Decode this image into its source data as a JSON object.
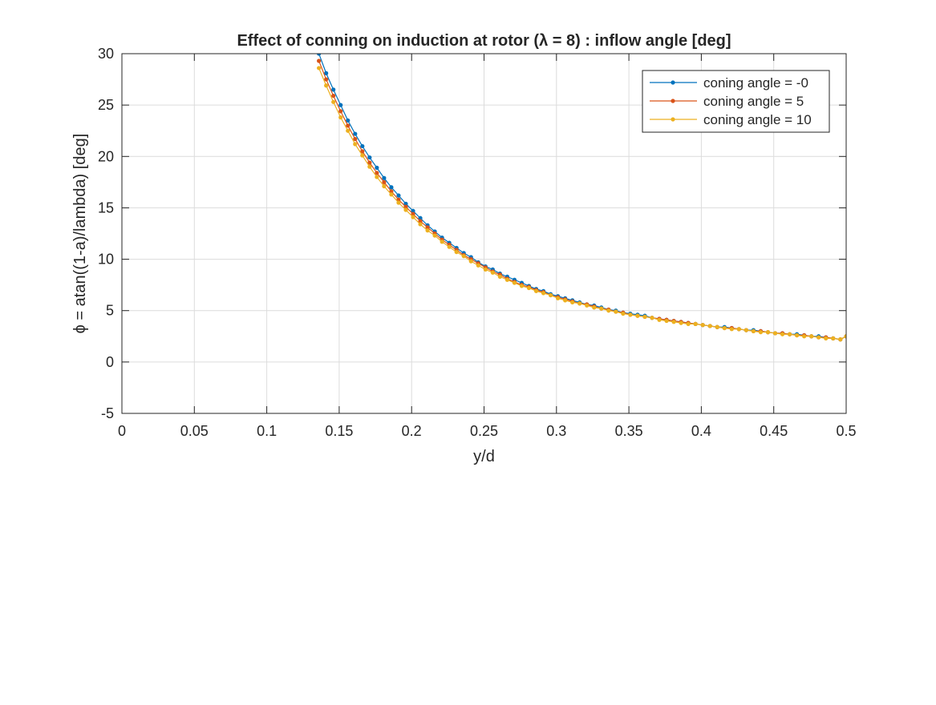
{
  "chart_data": {
    "type": "line",
    "title": "Effect of conning on induction at rotor (λ = 8) : inflow angle [deg]",
    "xlabel": "y/d",
    "ylabel": "ϕ = atan((1-a)/lambda) [deg]",
    "xlim": [
      0,
      0.5
    ],
    "ylim": [
      -5,
      30
    ],
    "xticks": [
      0,
      0.05,
      0.1,
      0.15,
      0.2,
      0.25,
      0.3,
      0.35,
      0.4,
      0.45,
      0.5
    ],
    "xtick_labels": [
      "0",
      "0.05",
      "0.1",
      "0.15",
      "0.2",
      "0.25",
      "0.3",
      "0.35",
      "0.4",
      "0.45",
      "0.5"
    ],
    "yticks": [
      -5,
      0,
      5,
      10,
      15,
      20,
      25,
      30
    ],
    "ytick_labels": [
      "-5",
      "0",
      "5",
      "10",
      "15",
      "20",
      "25",
      "30"
    ],
    "grid": true,
    "legend_position": "top-right",
    "x": [
      0.136,
      0.141,
      0.146,
      0.151,
      0.156,
      0.161,
      0.166,
      0.171,
      0.176,
      0.181,
      0.186,
      0.191,
      0.196,
      0.201,
      0.206,
      0.211,
      0.216,
      0.221,
      0.226,
      0.231,
      0.236,
      0.241,
      0.246,
      0.251,
      0.256,
      0.261,
      0.266,
      0.271,
      0.276,
      0.281,
      0.286,
      0.291,
      0.296,
      0.301,
      0.306,
      0.311,
      0.316,
      0.321,
      0.326,
      0.331,
      0.336,
      0.341,
      0.346,
      0.351,
      0.356,
      0.361,
      0.366,
      0.371,
      0.376,
      0.381,
      0.386,
      0.391,
      0.396,
      0.401,
      0.406,
      0.411,
      0.416,
      0.421,
      0.426,
      0.431,
      0.436,
      0.441,
      0.446,
      0.451,
      0.456,
      0.461,
      0.466,
      0.471,
      0.476,
      0.481,
      0.486,
      0.491,
      0.496,
      0.5
    ],
    "series": [
      {
        "name": "coning angle = -0",
        "color": "#0072BD",
        "values": [
          30.0,
          28.1,
          26.5,
          25.0,
          23.5,
          22.2,
          21.0,
          19.9,
          18.9,
          17.9,
          17.0,
          16.2,
          15.4,
          14.7,
          14.0,
          13.3,
          12.7,
          12.1,
          11.6,
          11.1,
          10.6,
          10.2,
          9.7,
          9.3,
          9.0,
          8.6,
          8.3,
          8.0,
          7.7,
          7.4,
          7.1,
          6.9,
          6.6,
          6.4,
          6.2,
          6.0,
          5.8,
          5.6,
          5.5,
          5.3,
          5.1,
          5.0,
          4.8,
          4.7,
          4.6,
          4.5,
          4.3,
          4.2,
          4.1,
          4.0,
          3.9,
          3.8,
          3.7,
          3.6,
          3.5,
          3.4,
          3.4,
          3.3,
          3.2,
          3.1,
          3.1,
          3.0,
          2.9,
          2.8,
          2.8,
          2.7,
          2.7,
          2.6,
          2.5,
          2.5,
          2.4,
          2.3,
          2.2,
          2.5
        ]
      },
      {
        "name": "coning angle = 5",
        "color": "#D95319",
        "values": [
          29.3,
          27.5,
          25.9,
          24.4,
          23.0,
          21.7,
          20.5,
          19.4,
          18.4,
          17.5,
          16.6,
          15.8,
          15.1,
          14.4,
          13.7,
          13.1,
          12.5,
          11.9,
          11.4,
          10.9,
          10.4,
          10.0,
          9.6,
          9.2,
          8.8,
          8.5,
          8.1,
          7.8,
          7.5,
          7.3,
          7.0,
          6.8,
          6.5,
          6.3,
          6.1,
          5.9,
          5.7,
          5.6,
          5.4,
          5.2,
          5.1,
          4.9,
          4.8,
          4.6,
          4.5,
          4.4,
          4.3,
          4.2,
          4.1,
          4.0,
          3.9,
          3.8,
          3.7,
          3.6,
          3.5,
          3.4,
          3.3,
          3.3,
          3.2,
          3.1,
          3.0,
          3.0,
          2.9,
          2.8,
          2.8,
          2.7,
          2.6,
          2.6,
          2.5,
          2.4,
          2.4,
          2.3,
          2.2,
          2.5
        ]
      },
      {
        "name": "coning angle = 10",
        "color": "#EDB120",
        "values": [
          28.6,
          26.9,
          25.3,
          23.8,
          22.5,
          21.2,
          20.1,
          19.0,
          18.0,
          17.1,
          16.3,
          15.5,
          14.8,
          14.1,
          13.4,
          12.8,
          12.3,
          11.7,
          11.2,
          10.7,
          10.3,
          9.8,
          9.4,
          9.0,
          8.7,
          8.3,
          8.0,
          7.7,
          7.4,
          7.2,
          6.9,
          6.7,
          6.5,
          6.2,
          6.0,
          5.8,
          5.7,
          5.5,
          5.3,
          5.2,
          5.0,
          4.9,
          4.7,
          4.6,
          4.5,
          4.4,
          4.3,
          4.1,
          4.0,
          3.9,
          3.8,
          3.7,
          3.7,
          3.6,
          3.5,
          3.4,
          3.3,
          3.2,
          3.2,
          3.1,
          3.0,
          2.9,
          2.9,
          2.8,
          2.7,
          2.7,
          2.6,
          2.5,
          2.5,
          2.4,
          2.3,
          2.3,
          2.2,
          2.5
        ]
      }
    ]
  }
}
